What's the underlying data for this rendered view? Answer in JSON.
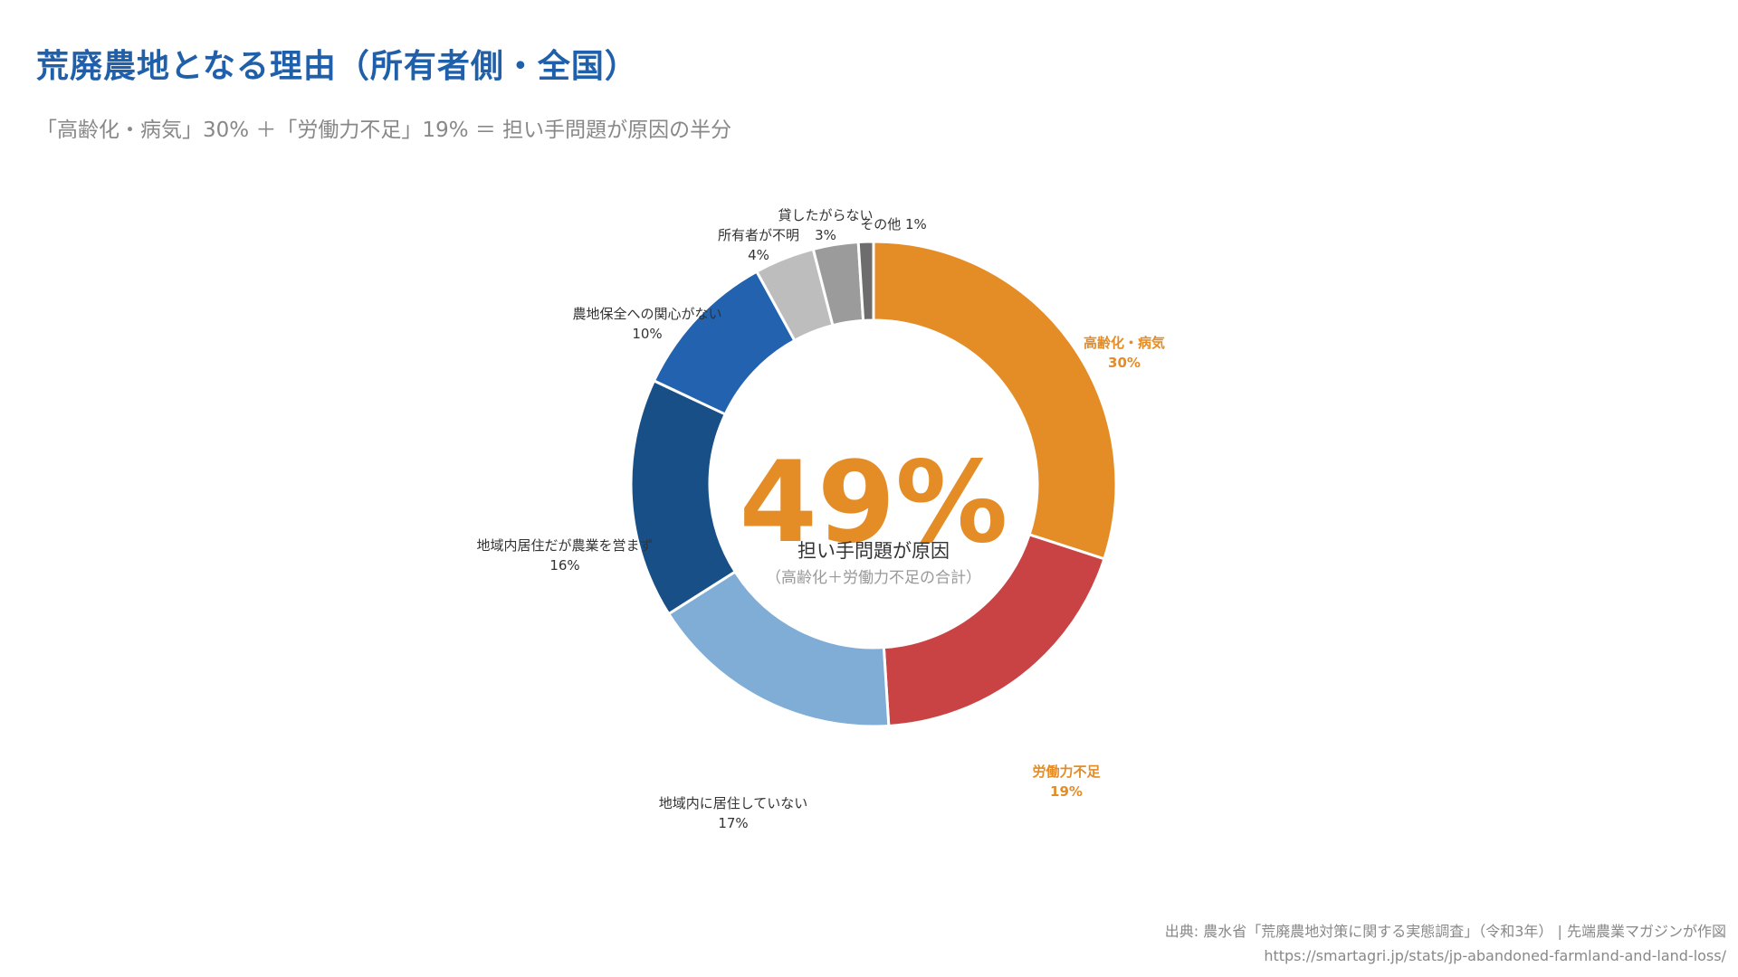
{
  "title": "荒廃農地となる理由（所有者側・全国）",
  "subtitle": "「高齢化・病気」30% ＋「労働力不足」19% ＝ 担い手問題が原因の半分",
  "center": {
    "big_value": "49%",
    "main_label": "担い手問題が原因",
    "sub_label": "（高齢化＋労働力不足の合計）"
  },
  "source": {
    "line1": "出典: 農水省「荒廃農地対策に関する実態調査」（令和3年） | 先端農業マガジンが作図",
    "line2": "https://smartagri.jp/stats/jp-abandoned-farmland-and-land-loss/"
  },
  "chart_data": {
    "type": "pie",
    "variant": "donut",
    "title": "荒廃農地となる理由（所有者側・全国）",
    "unit": "%",
    "start": "12 o'clock, clockwise",
    "slices": [
      {
        "label": "高齢化・病気",
        "value": 30,
        "value_text": "30%",
        "color": "#e48c26",
        "highlight": true
      },
      {
        "label": "労働力不足",
        "value": 19,
        "value_text": "19%",
        "color": "#c94244",
        "highlight": true
      },
      {
        "label": "地域内に居住していない",
        "value": 17,
        "value_text": "17%",
        "color": "#7fadd6",
        "highlight": false
      },
      {
        "label": "地域内居住だが農業を営まず",
        "value": 16,
        "value_text": "16%",
        "color": "#174f86",
        "highlight": false
      },
      {
        "label": "農地保全への関心がない",
        "value": 10,
        "value_text": "10%",
        "color": "#2262ae",
        "highlight": false
      },
      {
        "label": "所有者が不明",
        "value": 4,
        "value_text": "4%",
        "color": "#bdbdbd",
        "highlight": false
      },
      {
        "label": "貸したがらない",
        "value": 3,
        "value_text": "3%",
        "color": "#9b9b9b",
        "highlight": false
      },
      {
        "label": "その他",
        "value": 1,
        "value_text": "1%",
        "color": "#6d6d6d",
        "highlight": false
      }
    ]
  }
}
